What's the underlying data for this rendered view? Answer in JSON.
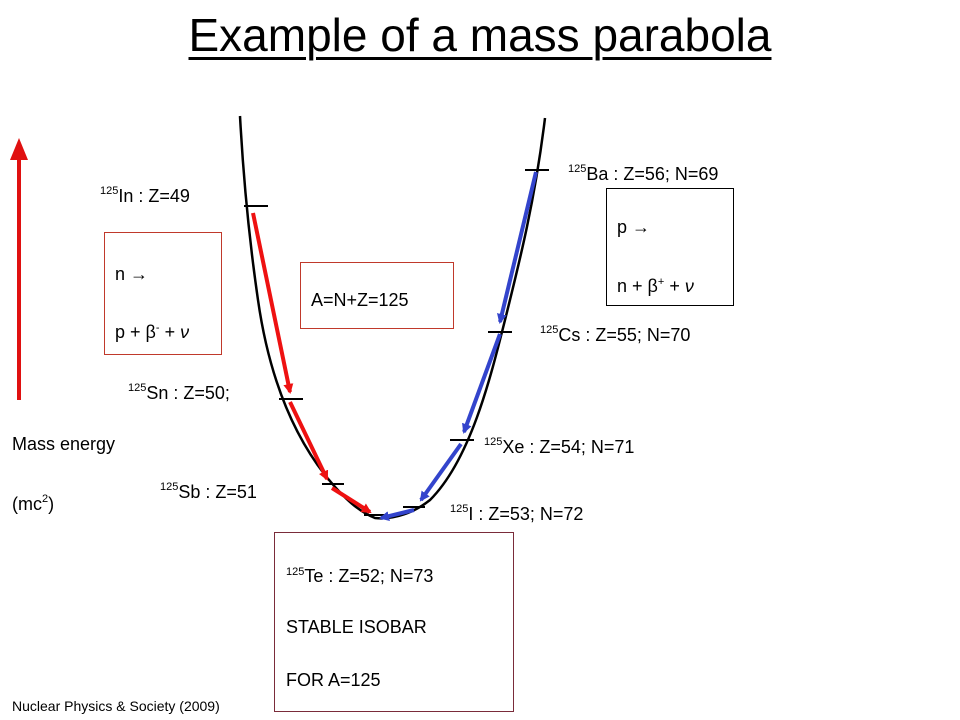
{
  "title": "Example of a mass parabola",
  "colors": {
    "beta_minus": "#ee1111",
    "beta_plus": "#3344cc",
    "axis_arrow": "#e01010",
    "curve": "#000000"
  },
  "axis": {
    "label_line1": "Mass energy",
    "label_line2_pre": "(mc",
    "label_line2_sup": "2",
    "label_line2_post": ")"
  },
  "isobars": [
    {
      "sup": "125",
      "text": "In : Z=49"
    },
    {
      "sup": "125",
      "text": "Sn : Z=50;"
    },
    {
      "sup": "125",
      "text": "Sb : Z=51"
    },
    {
      "sup": "125",
      "text": "Ba : Z=56; N=69"
    },
    {
      "sup": "125",
      "text": "Cs : Z=55; N=70"
    },
    {
      "sup": "125",
      "text": "Xe : Z=54; N=71"
    },
    {
      "sup": "125",
      "text": "I : Z=53; N=72"
    }
  ],
  "beta_minus_box": {
    "line1": "n →",
    "line2_pre": "p + ",
    "beta": "β",
    "sign": "-",
    "line2_post": " + ",
    "nu": "ν"
  },
  "beta_plus_box": {
    "line1": "p →",
    "line2_pre": "n + ",
    "beta": "β",
    "sign": "+",
    "line2_post": " + ",
    "nu": "ν"
  },
  "mass_box": "A=N+Z=125",
  "stable_box": {
    "sup": "125",
    "isotope": "Te : Z=52; N=73",
    "line2": "STABLE ISOBAR",
    "line3": "FOR A=125"
  },
  "footer": "Nuclear Physics & Society (2009)"
}
